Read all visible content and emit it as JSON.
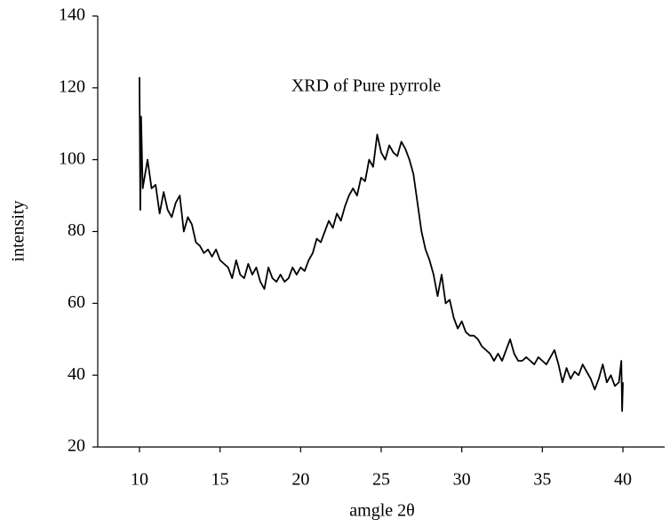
{
  "chart_data": {
    "type": "line",
    "title": "XRD of Pure pyrrole",
    "xlabel": "amgle 2θ",
    "ylabel": "intensity",
    "x": [
      10,
      10.05,
      10.1,
      10.2,
      10.5,
      10.75,
      11,
      11.25,
      11.5,
      11.75,
      12,
      12.25,
      12.5,
      12.75,
      13,
      13.25,
      13.5,
      13.75,
      14,
      14.25,
      14.5,
      14.75,
      15,
      15.25,
      15.5,
      15.75,
      16,
      16.25,
      16.5,
      16.75,
      17,
      17.25,
      17.5,
      17.75,
      18,
      18.25,
      18.5,
      18.75,
      19,
      19.25,
      19.5,
      19.75,
      20,
      20.25,
      20.5,
      20.75,
      21,
      21.25,
      21.5,
      21.75,
      22,
      22.25,
      22.5,
      22.75,
      23,
      23.25,
      23.5,
      23.75,
      24,
      24.25,
      24.5,
      24.75,
      25,
      25.25,
      25.5,
      25.75,
      26,
      26.25,
      26.5,
      26.75,
      27,
      27.25,
      27.5,
      27.75,
      28,
      28.25,
      28.5,
      28.75,
      29,
      29.25,
      29.5,
      29.75,
      30,
      30.25,
      30.5,
      30.75,
      31,
      31.25,
      31.5,
      31.75,
      32,
      32.25,
      32.5,
      32.75,
      33,
      33.25,
      33.5,
      33.75,
      34,
      34.25,
      34.5,
      34.75,
      35,
      35.25,
      35.5,
      35.75,
      36,
      36.25,
      36.5,
      36.75,
      37,
      37.25,
      37.5,
      37.75,
      38,
      38.25,
      38.5,
      38.75,
      39,
      39.25,
      39.5,
      39.75,
      39.9,
      39.95,
      40
    ],
    "series": [
      {
        "name": "XRD of Pure pyrrole",
        "color": "#000000",
        "values": [
          123,
          86,
          112,
          92,
          100,
          92,
          93,
          85,
          91,
          86,
          84,
          88,
          90,
          80,
          84,
          82,
          77,
          76,
          74,
          75,
          73,
          75,
          72,
          71,
          70,
          67,
          72,
          68,
          67,
          71,
          68,
          70,
          66,
          64,
          70,
          67,
          66,
          68,
          66,
          67,
          70,
          68,
          70,
          69,
          72,
          74,
          78,
          77,
          80,
          83,
          81,
          85,
          83,
          87,
          90,
          92,
          90,
          95,
          94,
          100,
          98,
          107,
          102,
          100,
          104,
          102,
          101,
          105,
          103,
          100,
          96,
          88,
          80,
          75,
          72,
          68,
          62,
          68,
          60,
          61,
          56,
          53,
          55,
          52,
          51,
          51,
          50,
          48,
          47,
          46,
          44,
          46,
          44,
          47,
          50,
          46,
          44,
          44,
          45,
          44,
          43,
          45,
          44,
          43,
          45,
          47,
          43,
          38,
          42,
          39,
          41,
          40,
          43,
          41,
          39,
          36,
          39,
          43,
          38,
          40,
          37,
          38,
          44,
          30,
          38
        ]
      }
    ],
    "xlim": [
      7.41,
      42.59
    ],
    "ylim": [
      20,
      140
    ],
    "xticks": [
      10,
      15,
      20,
      25,
      30,
      35,
      40
    ],
    "yticks": [
      20,
      40,
      60,
      80,
      100,
      120,
      140
    ]
  }
}
